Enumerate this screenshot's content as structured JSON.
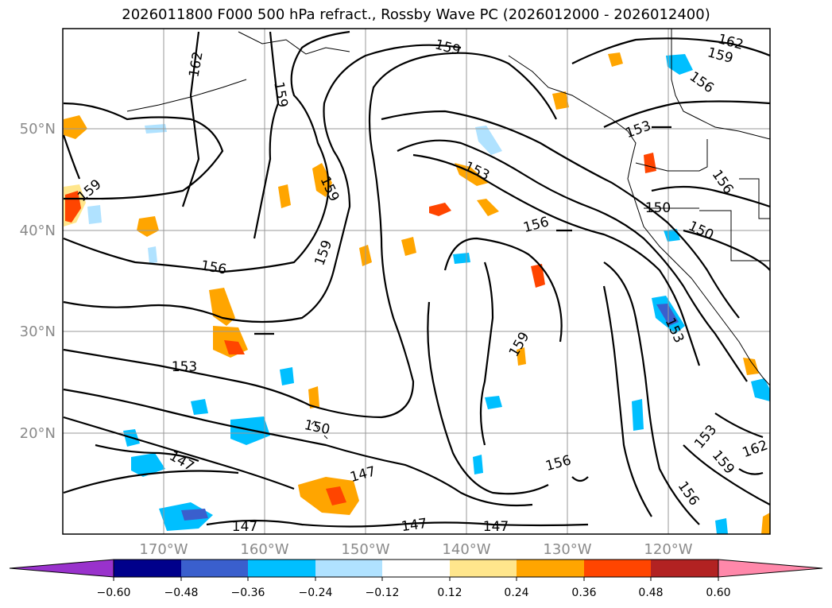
{
  "title": "2026011800 F000 500 hPa refract., Rossby Wave PC (2026012000 - 2026012400)",
  "map": {
    "lat_labels": [
      "50°N",
      "40°N",
      "30°N",
      "20°N"
    ],
    "lon_labels": [
      "170°W",
      "160°W",
      "150°W",
      "140°W",
      "130°W",
      "120°W"
    ],
    "contour_labels": [
      "162",
      "159",
      "159",
      "162",
      "159",
      "156",
      "153",
      "153",
      "156",
      "159",
      "150",
      "150",
      "159",
      "156",
      "159",
      "153",
      "150",
      "147",
      "147",
      "147",
      "147",
      "147",
      "156",
      "156",
      "153",
      "159",
      "162",
      "159",
      "156",
      "153"
    ]
  },
  "colorbar": {
    "ticks": [
      "−0.60",
      "−0.48",
      "−0.36",
      "−0.24",
      "−0.12",
      "0.12",
      "0.24",
      "0.36",
      "0.48",
      "0.60"
    ],
    "colors": [
      "#9932cc",
      "#00008b",
      "#3a5fcd",
      "#00bfff",
      "#b0e2ff",
      "#ffffff",
      "#ffe68c",
      "#ffa500",
      "#ff4500",
      "#b22222",
      "#ff88aa"
    ]
  }
}
